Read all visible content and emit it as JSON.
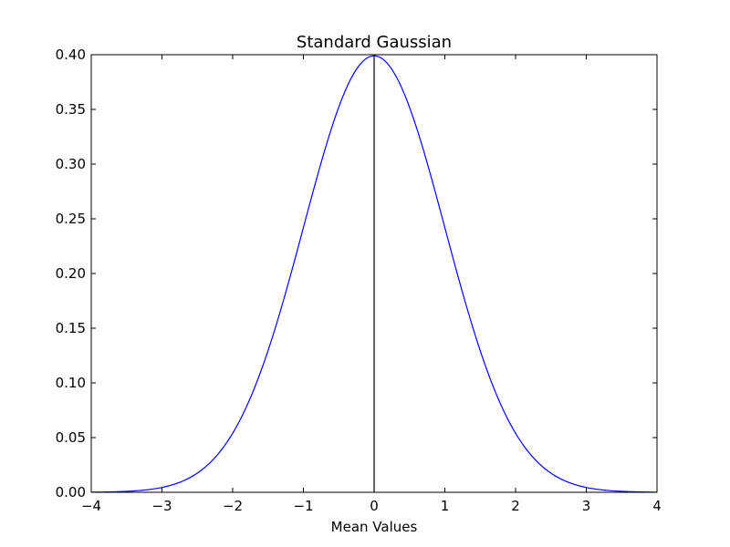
{
  "chart_data": {
    "type": "line",
    "title": "Standard Gaussian",
    "xlabel": "Mean Values",
    "ylabel": "",
    "xlim": [
      -4,
      4
    ],
    "ylim": [
      0.0,
      0.4
    ],
    "grid": false,
    "legend": "none",
    "x_ticks": [
      -4,
      -3,
      -2,
      -1,
      0,
      1,
      2,
      3,
      4
    ],
    "x_tick_labels": [
      "−4",
      "−3",
      "−2",
      "−1",
      "0",
      "1",
      "2",
      "3",
      "4"
    ],
    "y_ticks": [
      0.0,
      0.05,
      0.1,
      0.15,
      0.2,
      0.25,
      0.3,
      0.35,
      0.4
    ],
    "y_tick_labels": [
      "0.00",
      "0.05",
      "0.10",
      "0.15",
      "0.20",
      "0.25",
      "0.30",
      "0.35",
      "0.40"
    ],
    "series": [
      {
        "color": "#0000ff",
        "x": [
          -4.0,
          -3.5,
          -3.0,
          -2.5,
          -2.0,
          -1.5,
          -1.0,
          -0.5,
          0.0,
          0.5,
          1.0,
          1.5,
          2.0,
          2.5,
          3.0,
          3.5,
          4.0
        ],
        "y": [
          0.0001,
          0.0009,
          0.0044,
          0.0175,
          0.054,
          0.1295,
          0.242,
          0.3521,
          0.3989,
          0.3521,
          0.242,
          0.1295,
          0.054,
          0.0175,
          0.0044,
          0.0009,
          0.0001
        ]
      }
    ],
    "vertical_line": {
      "x": 0,
      "color": "#000000"
    }
  }
}
